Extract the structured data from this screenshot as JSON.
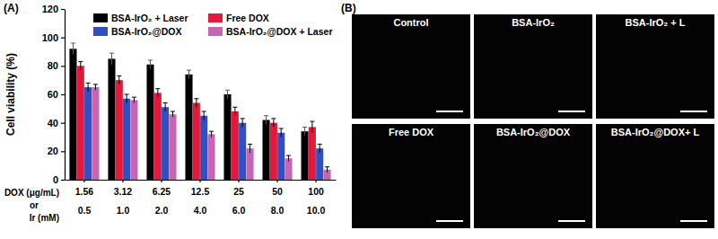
{
  "panel_labels": [
    "(A)",
    "(B)"
  ],
  "chart_data": {
    "type": "bar",
    "y_label": "Cell viability (%)",
    "x_label": [
      "DOX (μg/mL)",
      "or",
      "Ir (mM)"
    ],
    "categories": [
      [
        "1.56",
        "0.5"
      ],
      [
        "3.12",
        "1.0"
      ],
      [
        "6.25",
        "2.0"
      ],
      [
        "12.5",
        "4.0"
      ],
      [
        "25",
        "6.0"
      ],
      [
        "50",
        "8.0"
      ],
      [
        "100",
        "10.0"
      ]
    ],
    "series": [
      {
        "name": "BSA-IrO₂ + Laser",
        "color": "#000000",
        "values": [
          92,
          85,
          81,
          74,
          60,
          42,
          34
        ],
        "errors": [
          4,
          4,
          3,
          3,
          3,
          3,
          3
        ]
      },
      {
        "name": "Free DOX",
        "color": "#e3183a",
        "values": [
          80,
          70,
          61,
          54,
          48,
          40,
          37
        ],
        "errors": [
          3,
          3,
          3,
          3,
          3,
          3,
          4
        ]
      },
      {
        "name": "BSA-IrO₂@DOX",
        "color": "#2f4fc2",
        "values": [
          65,
          57,
          51,
          45,
          40,
          33,
          22
        ],
        "errors": [
          3,
          3,
          3,
          3,
          3,
          3,
          3
        ]
      },
      {
        "name": "BSA-IrO₂@DOX + Laser",
        "color": "#c764b4",
        "values": [
          65,
          56,
          46,
          32,
          22,
          15,
          7
        ],
        "errors": [
          2,
          2,
          2,
          2,
          3,
          2,
          2
        ]
      }
    ],
    "ylim": [
      0,
      120
    ],
    "yticks": [
      0,
      20,
      40,
      60,
      80,
      100,
      120
    ],
    "legend": "top"
  },
  "image_panels": {
    "titles": [
      "Control",
      "BSA-IrO₂",
      "BSA-IrO₂ + L",
      "Free DOX",
      "BSA-IrO₂@DOX",
      "BSA-IrO₂@DOX+ L"
    ]
  }
}
